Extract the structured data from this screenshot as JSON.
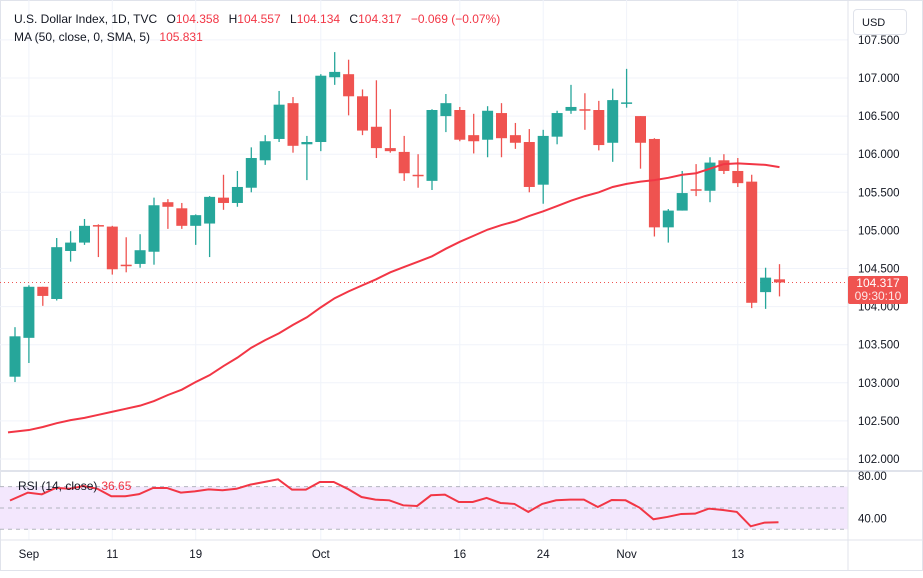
{
  "header": {
    "symbol": "U.S. Dollar Index, 1D, TVC",
    "open_label": "O",
    "open": "104.358",
    "high_label": "H",
    "high": "104.557",
    "low_label": "L",
    "low": "104.134",
    "close_label": "C",
    "close": "104.317",
    "change": "−0.069 (−0.07%)",
    "ma_label": "MA (50, close, 0, SMA, 5)",
    "ma_value": "105.831"
  },
  "currency_button": "USD",
  "last_price_tag": {
    "price": "104.317",
    "countdown": "09:30:10"
  },
  "rsi_legend": {
    "label": "RSI (14, close)",
    "value": "36.65"
  },
  "colors": {
    "up": "#26a69a",
    "down": "#ef5350",
    "ma": "#f23645",
    "rsi": "#f23645",
    "rsi_band": "#f3e7fd"
  },
  "chart_data": [
    {
      "type": "candlestick",
      "title": "U.S. Dollar Index, 1D, TVC",
      "y_ticks": [
        "107.500",
        "107.000",
        "106.500",
        "106.000",
        "105.500",
        "105.000",
        "104.500",
        "104.000",
        "103.500",
        "103.000",
        "102.500",
        "102.000"
      ],
      "ylim": [
        101.9,
        107.55
      ],
      "x_labels": [
        {
          "index": 1,
          "label": "Sep"
        },
        {
          "index": 7,
          "label": "11"
        },
        {
          "index": 13,
          "label": "19"
        },
        {
          "index": 22,
          "label": "Oct"
        },
        {
          "index": 32,
          "label": "16"
        },
        {
          "index": 38,
          "label": "24"
        },
        {
          "index": 44,
          "label": "Nov"
        },
        {
          "index": 52,
          "label": "13"
        }
      ],
      "ohlc": [
        [
          103.08,
          103.73,
          103.01,
          103.61
        ],
        [
          103.59,
          104.28,
          103.26,
          104.26
        ],
        [
          104.26,
          104.26,
          104.01,
          104.14
        ],
        [
          104.1,
          104.9,
          104.08,
          104.78
        ],
        [
          104.73,
          104.99,
          104.59,
          104.84
        ],
        [
          104.84,
          105.15,
          104.81,
          105.06
        ],
        [
          105.07,
          105.08,
          104.65,
          105.05
        ],
        [
          105.05,
          105.06,
          104.42,
          104.49
        ],
        [
          104.55,
          104.91,
          104.45,
          104.53
        ],
        [
          104.56,
          104.95,
          104.51,
          104.74
        ],
        [
          104.72,
          105.43,
          104.55,
          105.33
        ],
        [
          105.37,
          105.41,
          105.02,
          105.31
        ],
        [
          105.29,
          105.36,
          105.02,
          105.06
        ],
        [
          105.06,
          105.21,
          104.81,
          105.2
        ],
        [
          105.09,
          105.45,
          104.65,
          105.44
        ],
        [
          105.43,
          105.73,
          105.27,
          105.36
        ],
        [
          105.36,
          105.78,
          105.31,
          105.57
        ],
        [
          105.56,
          106.09,
          105.5,
          105.95
        ],
        [
          105.92,
          106.25,
          105.86,
          106.17
        ],
        [
          106.2,
          106.83,
          106.16,
          106.65
        ],
        [
          106.67,
          106.75,
          106.02,
          106.11
        ],
        [
          106.13,
          106.24,
          105.66,
          106.16
        ],
        [
          106.16,
          107.05,
          106.04,
          107.03
        ],
        [
          107.01,
          107.34,
          106.91,
          107.08
        ],
        [
          107.05,
          107.24,
          106.51,
          106.76
        ],
        [
          106.76,
          106.85,
          106.25,
          106.31
        ],
        [
          106.36,
          106.97,
          105.95,
          106.08
        ],
        [
          106.08,
          106.59,
          106.02,
          106.04
        ],
        [
          106.03,
          106.24,
          105.65,
          105.75
        ],
        [
          105.73,
          106.0,
          105.56,
          105.72
        ],
        [
          105.65,
          106.59,
          105.53,
          106.58
        ],
        [
          106.5,
          106.79,
          106.29,
          106.67
        ],
        [
          106.58,
          106.62,
          106.17,
          106.19
        ],
        [
          106.25,
          106.53,
          106.01,
          106.17
        ],
        [
          106.19,
          106.63,
          105.96,
          106.57
        ],
        [
          106.54,
          106.67,
          105.96,
          106.21
        ],
        [
          106.25,
          106.41,
          106.07,
          106.15
        ],
        [
          106.16,
          106.33,
          105.5,
          105.57
        ],
        [
          105.6,
          106.32,
          105.35,
          106.24
        ],
        [
          106.23,
          106.57,
          106.13,
          106.54
        ],
        [
          106.57,
          106.91,
          106.53,
          106.62
        ],
        [
          106.59,
          106.8,
          106.32,
          106.58
        ],
        [
          106.58,
          106.7,
          106.05,
          106.12
        ],
        [
          106.15,
          106.86,
          105.9,
          106.71
        ],
        [
          106.67,
          107.12,
          106.61,
          106.68
        ],
        [
          106.5,
          106.5,
          105.81,
          106.15
        ],
        [
          106.2,
          106.21,
          104.92,
          105.04
        ],
        [
          105.04,
          105.28,
          104.84,
          105.26
        ],
        [
          105.26,
          105.78,
          105.26,
          105.49
        ],
        [
          105.54,
          105.87,
          105.45,
          105.53
        ],
        [
          105.52,
          105.96,
          105.37,
          105.89
        ],
        [
          105.92,
          106.0,
          105.74,
          105.78
        ],
        [
          105.78,
          105.95,
          105.57,
          105.62
        ],
        [
          105.64,
          105.73,
          103.98,
          104.05
        ],
        [
          104.19,
          104.51,
          103.97,
          104.38
        ],
        [
          104.358,
          104.557,
          104.134,
          104.317
        ]
      ],
      "ma50": [
        102.35,
        102.38,
        102.42,
        102.47,
        102.51,
        102.54,
        102.58,
        102.62,
        102.66,
        102.7,
        102.76,
        102.84,
        102.91,
        103.01,
        103.1,
        103.22,
        103.33,
        103.46,
        103.56,
        103.65,
        103.76,
        103.86,
        103.99,
        104.11,
        104.2,
        104.28,
        104.36,
        104.45,
        104.52,
        104.59,
        104.66,
        104.76,
        104.85,
        104.93,
        105.01,
        105.07,
        105.12,
        105.19,
        105.25,
        105.32,
        105.39,
        105.45,
        105.5,
        105.57,
        105.61,
        105.64,
        105.66,
        105.69,
        105.73,
        105.75,
        105.81,
        105.87,
        105.88,
        105.87,
        105.86,
        105.831
      ],
      "last_price": 104.317
    },
    {
      "type": "line",
      "title": "RSI (14, close)",
      "y_ticks": [
        "80.00",
        "40.00"
      ],
      "ylim": [
        25,
        82
      ],
      "band": [
        30,
        70
      ],
      "midline": 50,
      "values": [
        57,
        64.4,
        62.8,
        68.8,
        68,
        70.6,
        68,
        61,
        61,
        63,
        68.8,
        68.8,
        64.4,
        65.6,
        67.5,
        66.6,
        68,
        71.9,
        74.4,
        76.9,
        67.2,
        67.2,
        74.4,
        74.4,
        68,
        60.3,
        57.8,
        57.2,
        52.5,
        51.9,
        61.9,
        62.5,
        55.6,
        55.6,
        59.4,
        54.7,
        53.8,
        46.3,
        53.8,
        57.2,
        57.8,
        57.8,
        50.9,
        57.5,
        57.2,
        50.3,
        39.4,
        41.6,
        44.4,
        44.7,
        49.4,
        48.1,
        46.3,
        32.8,
        36.3,
        36.65
      ]
    }
  ]
}
